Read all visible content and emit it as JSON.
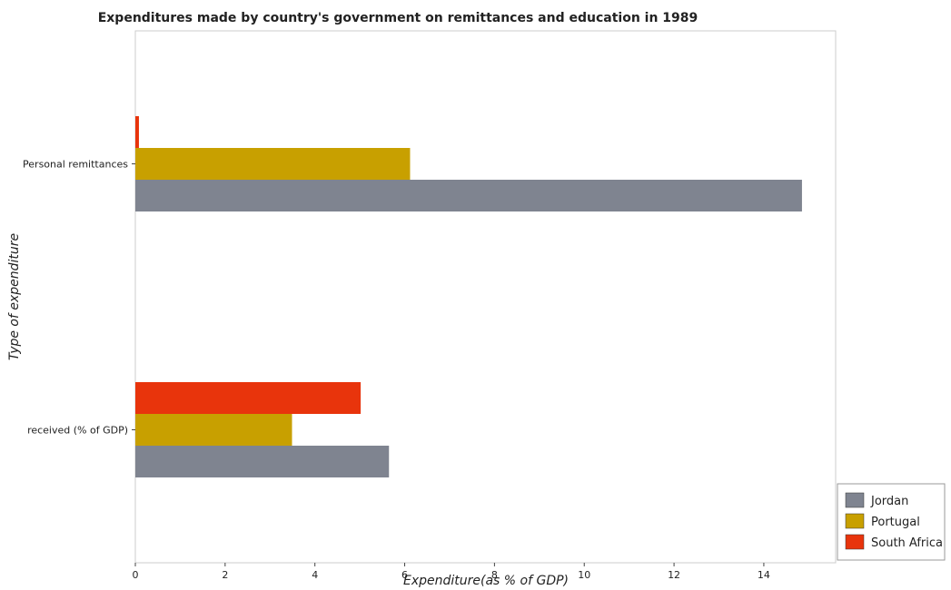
{
  "chart_data": {
    "type": "bar",
    "orientation": "horizontal",
    "title": "Expenditures made by country's government on remittances and education in 1989",
    "xlabel": "Expenditure(as % of GDP)",
    "ylabel": "Type of expenditure",
    "categories": [
      "Personal remittances",
      " received (% of GDP)"
    ],
    "xlim": [
      0,
      15.6
    ],
    "xticks": [
      0,
      2,
      4,
      6,
      8,
      10,
      12,
      14
    ],
    "grid": false,
    "legend_position": "bottom-right",
    "series": [
      {
        "name": "Jordan",
        "color": "#7f8490",
        "values": [
          14.85,
          5.65
        ]
      },
      {
        "name": "Portugal",
        "color": "#c8a000",
        "values": [
          6.12,
          3.49
        ]
      },
      {
        "name": "South Africa",
        "color": "#e8340c",
        "values": [
          0.08,
          5.02
        ]
      }
    ]
  }
}
